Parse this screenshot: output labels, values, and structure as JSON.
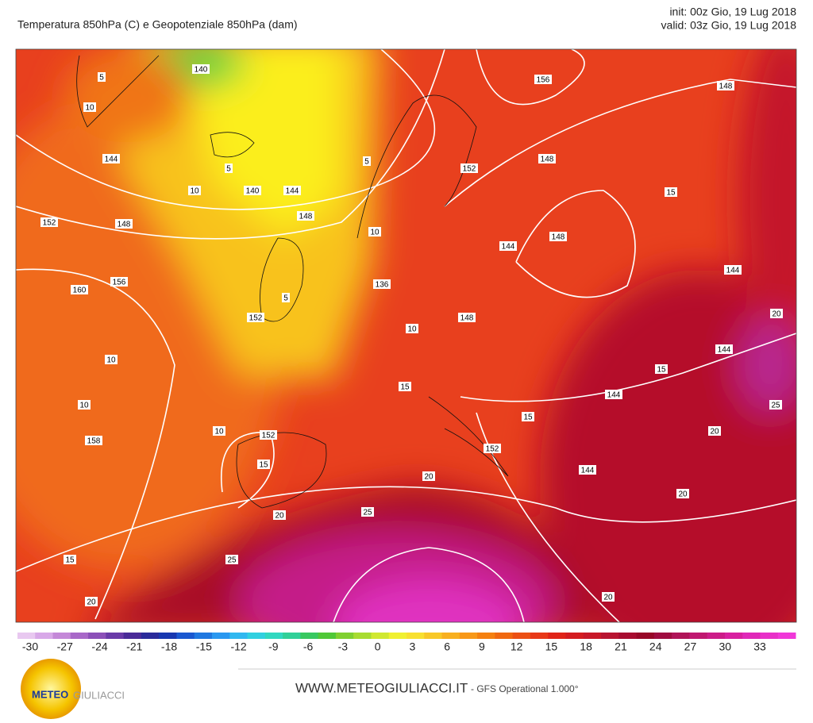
{
  "header": {
    "title": "Temperatura 850hPa (C) e Geopotenziale 850hPa (dam)",
    "init": "init: 00z Gio, 19 Lug 2018",
    "valid": "valid: 03z Gio, 19 Lug 2018"
  },
  "map": {
    "contour_labels": [
      5,
      10,
      140,
      5,
      10,
      140,
      144,
      144,
      148,
      5,
      10,
      152,
      148,
      156,
      160,
      152,
      5,
      136,
      10,
      148,
      152,
      148,
      156,
      148,
      15,
      148,
      144,
      144,
      20,
      144,
      15,
      144,
      25,
      20,
      15,
      152,
      144,
      20,
      15,
      152,
      15,
      10,
      10,
      10,
      158,
      20,
      20,
      25,
      15,
      25,
      20,
      20
    ]
  },
  "colorbar": {
    "ticks": [
      -30,
      -27,
      -24,
      -21,
      -18,
      -15,
      -12,
      -9,
      -6,
      -3,
      0,
      3,
      6,
      9,
      12,
      15,
      18,
      21,
      24,
      27,
      30,
      33
    ]
  },
  "footer": {
    "site": "WWW.METEOGIULIACCI.IT",
    "model": "- GFS Operational 1.000°",
    "logo_meteo": "METEO",
    "logo_giuliacci": "GIULIACCI"
  }
}
